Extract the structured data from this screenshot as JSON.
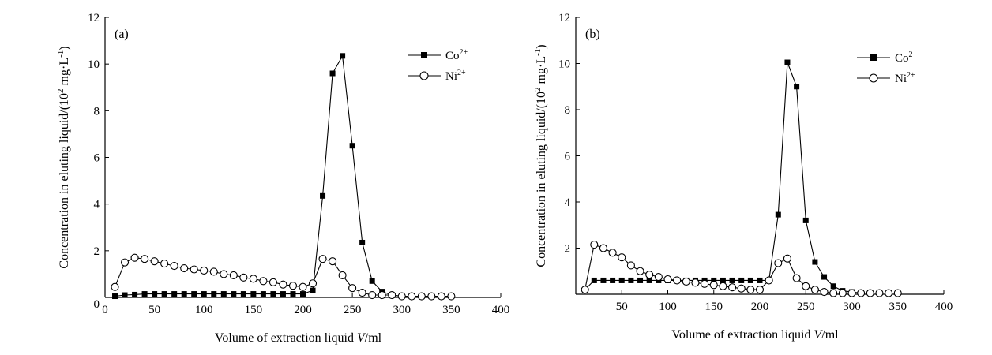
{
  "chart_data": [
    {
      "type": "line",
      "panel_label": "(a)",
      "xlabel_prefix": "Volume of extraction liquid ",
      "xlabel_var": "V",
      "xlabel_suffix": "/ml",
      "ylabel_main": "Concentration in eluting liquid/(10",
      "ylabel_exp1": "2",
      "ylabel_mid": " mg·L",
      "ylabel_exp2": "-1",
      "ylabel_end": ")",
      "xlim": [
        0,
        400
      ],
      "ylim": [
        0,
        12
      ],
      "xticks": [
        0,
        50,
        100,
        150,
        200,
        250,
        300,
        350,
        400
      ],
      "yticks": [
        2,
        4,
        6,
        8,
        10,
        12
      ],
      "y_zero_label": "0",
      "legend_position": "top-right",
      "series": [
        {
          "name": "Co",
          "charge": "2+",
          "marker": "filled-square",
          "x": [
            10,
            20,
            30,
            40,
            50,
            60,
            70,
            80,
            90,
            100,
            110,
            120,
            130,
            140,
            150,
            160,
            170,
            180,
            190,
            200,
            210,
            220,
            230,
            240,
            250,
            260,
            270,
            280,
            290,
            300,
            310,
            320,
            330,
            340,
            350
          ],
          "y": [
            0.05,
            0.1,
            0.12,
            0.15,
            0.15,
            0.15,
            0.15,
            0.15,
            0.15,
            0.15,
            0.15,
            0.15,
            0.15,
            0.15,
            0.15,
            0.15,
            0.15,
            0.15,
            0.15,
            0.15,
            0.3,
            4.35,
            9.6,
            10.35,
            6.5,
            2.35,
            0.7,
            0.25,
            0.1,
            0.05,
            0.05,
            0.05,
            0.05,
            0.05,
            0.05
          ]
        },
        {
          "name": "Ni",
          "charge": "2+",
          "marker": "open-circle",
          "x": [
            10,
            20,
            30,
            40,
            50,
            60,
            70,
            80,
            90,
            100,
            110,
            120,
            130,
            140,
            150,
            160,
            170,
            180,
            190,
            200,
            210,
            220,
            230,
            240,
            250,
            260,
            270,
            280,
            290,
            300,
            310,
            320,
            330,
            340,
            350
          ],
          "y": [
            0.45,
            1.5,
            1.7,
            1.65,
            1.55,
            1.45,
            1.35,
            1.25,
            1.2,
            1.15,
            1.1,
            1.0,
            0.95,
            0.85,
            0.8,
            0.7,
            0.65,
            0.55,
            0.5,
            0.45,
            0.6,
            1.65,
            1.55,
            0.95,
            0.4,
            0.2,
            0.1,
            0.1,
            0.1,
            0.05,
            0.05,
            0.05,
            0.05,
            0.05,
            0.05
          ]
        }
      ]
    },
    {
      "type": "line",
      "panel_label": "(b)",
      "xlabel_prefix": "Volume of extraction liquid ",
      "xlabel_var": "V",
      "xlabel_suffix": "/ml",
      "ylabel_main": "Concentration in eluting liquid/(10",
      "ylabel_exp1": "2",
      "ylabel_mid": " mg·L",
      "ylabel_exp2": "-1",
      "ylabel_end": ")",
      "xlim": [
        0,
        400
      ],
      "ylim": [
        0,
        12
      ],
      "xticks": [
        50,
        100,
        150,
        200,
        250,
        300,
        350,
        400
      ],
      "yticks": [
        2,
        4,
        6,
        8,
        10,
        12
      ],
      "legend_position": "top-right",
      "series": [
        {
          "name": "Co",
          "charge": "2+",
          "marker": "filled-square",
          "x": [
            10,
            20,
            30,
            40,
            50,
            60,
            70,
            80,
            90,
            100,
            110,
            120,
            130,
            140,
            150,
            160,
            170,
            180,
            190,
            200,
            210,
            220,
            230,
            240,
            250,
            260,
            270,
            280,
            290,
            300,
            310,
            320,
            330,
            340,
            350
          ],
          "y": [
            0.2,
            0.6,
            0.6,
            0.6,
            0.6,
            0.6,
            0.6,
            0.6,
            0.6,
            0.6,
            0.6,
            0.6,
            0.6,
            0.6,
            0.6,
            0.6,
            0.6,
            0.6,
            0.6,
            0.6,
            0.6,
            3.45,
            10.05,
            9.0,
            3.2,
            1.4,
            0.75,
            0.35,
            0.15,
            0.1,
            0.05,
            0.05,
            0.05,
            0.05,
            0.05
          ]
        },
        {
          "name": "Ni",
          "charge": "2+",
          "marker": "open-circle",
          "x": [
            10,
            20,
            30,
            40,
            50,
            60,
            70,
            80,
            90,
            100,
            110,
            120,
            130,
            140,
            150,
            160,
            170,
            180,
            190,
            200,
            210,
            220,
            230,
            240,
            250,
            260,
            270,
            280,
            290,
            300,
            310,
            320,
            330,
            340,
            350
          ],
          "y": [
            0.2,
            2.15,
            2.0,
            1.8,
            1.6,
            1.25,
            1.0,
            0.85,
            0.75,
            0.65,
            0.6,
            0.55,
            0.5,
            0.45,
            0.4,
            0.35,
            0.3,
            0.25,
            0.2,
            0.2,
            0.6,
            1.35,
            1.55,
            0.7,
            0.35,
            0.2,
            0.1,
            0.05,
            0.05,
            0.05,
            0.05,
            0.05,
            0.05,
            0.05,
            0.05
          ]
        }
      ]
    }
  ]
}
